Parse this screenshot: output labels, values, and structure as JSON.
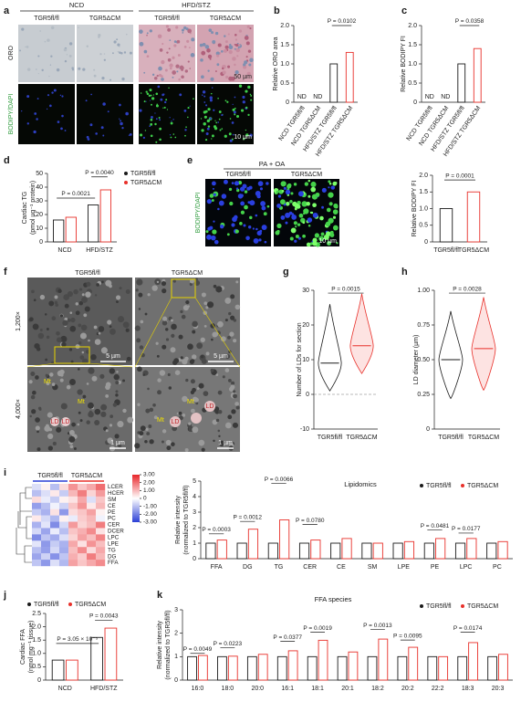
{
  "figure": {
    "panel_labels": [
      "a",
      "b",
      "c",
      "d",
      "e",
      "f",
      "g",
      "h",
      "i",
      "j",
      "k"
    ],
    "panel_a": {
      "groups": [
        "NCD",
        "HFD/STZ"
      ],
      "genotypes": [
        "TGR5fl/fl",
        "TGR5ΔCM",
        "TGR5fl/fl",
        "TGR5ΔCM"
      ],
      "rows": [
        "ORO",
        "BODIPY/DAPI"
      ],
      "scale_bars": [
        "50 µm",
        "10 µm"
      ]
    },
    "panel_e": {
      "treatment": "PA + OA",
      "genotypes": [
        "TGR5fl/fl",
        "TGR5ΔCM"
      ],
      "row": "BODIPY/DAPI",
      "scale_bar": "10 µm"
    },
    "panel_f": {
      "genotypes": [
        "TGR5fl/fl",
        "TGR5ΔCM"
      ],
      "rows": [
        "1,200×",
        "4,000×"
      ],
      "scale_bars": [
        "5 µm",
        "5 µm",
        "1 µm",
        "1 µm"
      ],
      "labels": [
        "Mt",
        "Mt",
        "LD",
        "LD",
        "Mt",
        "LD",
        "Mt",
        "LD"
      ]
    }
  },
  "chart_data": [
    {
      "type": "bar",
      "ylabel": "Relative ORO area",
      "categories": [
        "NCD TGR5fl/fl",
        "NCD TGR5ΔCM",
        "HFD/STZ TGR5fl/fl",
        "HFD/STZ TGR5ΔCM"
      ],
      "values": [
        null,
        null,
        1.0,
        1.3
      ],
      "value_labels": [
        "ND",
        "ND",
        null,
        null
      ],
      "colors": [
        "#1a1a1a",
        "#e8302a",
        "#1a1a1a",
        "#e8302a"
      ],
      "ylim": [
        0,
        2
      ],
      "yticks": [
        0,
        0.5,
        {
          "value": 1,
          "label": "1.0"
        },
        1.5,
        {
          "value": 2,
          "label": "2.0"
        }
      ],
      "annotations": [
        "P = 0.0102"
      ]
    },
    {
      "type": "bar",
      "ylabel": "Relative BODIPY FI",
      "categories": [
        "NCD TGR5fl/fl",
        "NCD TGR5ΔCM",
        "HFD/STZ TGR5fl/fl",
        "HFD/STZ TGR5ΔCM"
      ],
      "values": [
        null,
        null,
        1.0,
        1.4
      ],
      "value_labels": [
        "ND",
        "ND",
        null,
        null
      ],
      "colors": [
        "#1a1a1a",
        "#e8302a",
        "#1a1a1a",
        "#e8302a"
      ],
      "ylim": [
        0,
        2
      ],
      "yticks": [
        0,
        0.5,
        {
          "value": 1,
          "label": "1.0"
        },
        1.5,
        {
          "value": 2,
          "label": "2.0"
        }
      ],
      "annotations": [
        "P = 0.0358"
      ]
    },
    {
      "type": "bar",
      "ylabel": [
        "Cardiac TG",
        "(pmol µg⁻¹ protein)"
      ],
      "categories": [
        "NCD",
        "HFD/STZ"
      ],
      "series": [
        {
          "name": "TGR5fl/fl",
          "color": "#1a1a1a",
          "values": [
            16,
            27
          ]
        },
        {
          "name": "TGR5ΔCM",
          "color": "#e8302a",
          "values": [
            18,
            38
          ]
        }
      ],
      "ylim": [
        0,
        50
      ],
      "yticks": [
        0,
        10,
        20,
        30,
        40,
        50
      ],
      "annotations": [
        "P = 0.0021",
        "P = 0.0040"
      ]
    },
    {
      "type": "bar",
      "ylabel": "Relative BODIPY FI",
      "categories": [
        "TGR5fl/fl",
        "TGR5ΔCM"
      ],
      "values": [
        1.0,
        1.5
      ],
      "colors": [
        "#1a1a1a",
        "#e8302a"
      ],
      "ylim": [
        0,
        2
      ],
      "yticks": [
        0,
        0.5,
        {
          "value": 1,
          "label": "1.0"
        },
        1.5,
        {
          "value": 2,
          "label": "2.0"
        }
      ],
      "annotations": [
        "P = 0.0001"
      ]
    },
    {
      "type": "violin",
      "ylabel": "Number of LDs for section",
      "categories": [
        "TGR5fl/fl",
        "TGR5ΔCM"
      ],
      "values": [
        9,
        14
      ],
      "min": [
        1,
        6
      ],
      "max": [
        26,
        29
      ],
      "colors": [
        "#1a1a1a",
        "#e8302a"
      ],
      "ylim": [
        -10,
        30
      ],
      "yticks": [
        -10,
        0,
        10,
        20,
        30
      ],
      "annotations": [
        "P = 0.0015"
      ]
    },
    {
      "type": "violin",
      "ylabel": "LD diameter (µm)",
      "categories": [
        "TGR5fl/fl",
        "TGR5ΔCM"
      ],
      "values": [
        0.5,
        0.58
      ],
      "min": [
        0.22,
        0.28
      ],
      "max": [
        0.85,
        0.95
      ],
      "colors": [
        "#1a1a1a",
        "#e8302a"
      ],
      "ylim": [
        0,
        1
      ],
      "yticks": [
        0,
        {
          "value": 0.25,
          "label": "0.25"
        },
        {
          "value": 0.5,
          "label": "0.50"
        },
        {
          "value": 0.75,
          "label": "0.75"
        },
        {
          "value": 1,
          "label": "1.00"
        }
      ],
      "annotations": [
        "P = 0.0028"
      ]
    },
    {
      "type": "heatmap",
      "groups": [
        "TGR5fl/fl",
        "TGR5ΔCM"
      ],
      "rows": [
        "LCER",
        "HCER",
        "SM",
        "CE",
        "PE",
        "PC",
        "CER",
        "DCER",
        "LPC",
        "LPE",
        "TG",
        "DG",
        "FFA"
      ],
      "values": [
        [
          -0.5,
          0.2,
          -1,
          0.5,
          1.5,
          0.8,
          1.2,
          2
        ],
        [
          -1,
          -0.5,
          0.3,
          -0.8,
          1,
          1.8,
          0.6,
          1.4
        ],
        [
          0.5,
          -0.3,
          -0.8,
          0.2,
          0.4,
          1.2,
          -0.5,
          0.8
        ],
        [
          -1.5,
          -1,
          -0.2,
          -0.7,
          0.8,
          1.5,
          0.3,
          1
        ],
        [
          -0.8,
          -1.2,
          0.4,
          -1.6,
          0.5,
          0.8,
          1.3,
          0.2
        ],
        [
          0.3,
          -0.6,
          -1.1,
          0.2,
          -0.3,
          0.7,
          1,
          -0.2
        ],
        [
          -1.2,
          -0.4,
          -1.8,
          -0.6,
          1.4,
          0.6,
          0.9,
          1.8
        ],
        [
          -0.6,
          -1.4,
          -0.3,
          -1,
          0.8,
          1.1,
          1.6,
          0.4
        ],
        [
          -1.8,
          -0.9,
          -1.3,
          -0.5,
          0.6,
          1.3,
          0.9,
          1.7
        ],
        [
          -0.4,
          -1.6,
          -0.8,
          -1.2,
          1.2,
          0.4,
          1.5,
          0.9
        ],
        [
          -1,
          -1.5,
          -0.6,
          -1.3,
          0.9,
          1.6,
          0.5,
          1.2
        ],
        [
          -1.4,
          -0.7,
          -1.7,
          -0.9,
          1.1,
          0.7,
          1.8,
          1
        ],
        [
          -0.9,
          -1.6,
          -0.5,
          -1.1,
          1.3,
          0.8,
          1.2,
          1.6
        ]
      ],
      "zlim": [
        -3,
        3
      ],
      "zticks": [
        {
          "value": 3,
          "label": "3.00"
        },
        {
          "value": 2,
          "label": "2.00"
        },
        {
          "value": 1,
          "label": "1.00"
        },
        0,
        {
          "value": -1,
          "label": "-1.00"
        },
        {
          "value": -2,
          "label": "-2.00"
        },
        {
          "value": -3,
          "label": "-3.00"
        }
      ]
    },
    {
      "type": "bar",
      "title": "Lipidomics",
      "ylabel": [
        "Relative intensity",
        "(normalized to TGR5fl/fl)"
      ],
      "categories": [
        "FFA",
        "DG",
        "TG",
        "CER",
        "CE",
        "SM",
        "LPE",
        "PE",
        "LPC",
        "PC"
      ],
      "series": [
        {
          "name": "TGR5fl/fl",
          "color": "#1a1a1a",
          "values": [
            1,
            1,
            1,
            1,
            1,
            1,
            1,
            1,
            1,
            1
          ]
        },
        {
          "name": "TGR5ΔCM",
          "color": "#e8302a",
          "values": [
            1.2,
            1.9,
            2.5,
            1.2,
            1.3,
            1.0,
            1.1,
            1.3,
            1.3,
            1.1
          ]
        }
      ],
      "ylim": [
        0,
        5
      ],
      "yticks": [
        0,
        1,
        2,
        3,
        4,
        5
      ],
      "annotations": [
        "P = 0.0003",
        "P = 0.0012",
        "P = 0.0066",
        "P = 0.0780",
        "P = 0.0481",
        "P = 0.0177"
      ]
    },
    {
      "type": "bar",
      "ylabel": [
        "Cardiac FFA",
        "(nmol mg⁻¹ tissue)"
      ],
      "categories": [
        "NCD",
        "HFD/STZ"
      ],
      "series": [
        {
          "name": "TGR5fl/fl",
          "color": "#1a1a1a",
          "values": [
            0.75,
            1.6
          ]
        },
        {
          "name": "TGR5ΔCM",
          "color": "#e8302a",
          "values": [
            0.75,
            1.95
          ]
        }
      ],
      "ylim": [
        0,
        2.5
      ],
      "yticks": [
        0,
        0.5,
        {
          "value": 1,
          "label": "1.0"
        },
        1.5,
        {
          "value": 2,
          "label": "2.0"
        },
        2.5
      ],
      "annotations": [
        "P = 3.05 × 10⁻⁵",
        "P = 0.0043"
      ]
    },
    {
      "type": "bar",
      "title": "FFA species",
      "ylabel": [
        "Relative intensity",
        "(normalized to TGR5fl/fl)"
      ],
      "categories": [
        "16:0",
        "18:0",
        "20:0",
        "16:1",
        "18:1",
        "20:1",
        "18:2",
        "20:2",
        "22:2",
        "18:3",
        "20:3"
      ],
      "series": [
        {
          "name": "TGR5fl/fl",
          "color": "#1a1a1a",
          "values": [
            1,
            1,
            1,
            1,
            1,
            1,
            1,
            1,
            1,
            1,
            1
          ]
        },
        {
          "name": "TGR5ΔCM",
          "color": "#e8302a",
          "values": [
            1.05,
            1.02,
            1.1,
            1.25,
            1.7,
            1.2,
            1.75,
            1.4,
            1.0,
            1.6,
            1.1
          ]
        }
      ],
      "ylim": [
        0,
        3
      ],
      "yticks": [
        0,
        1,
        2,
        3
      ],
      "annotations": [
        "P = 0.0049",
        "P = 0.0223",
        "P = 0.0377",
        "P = 0.0019",
        "P = 0.0013",
        "P = 0.0095",
        "P = 0.0174"
      ]
    }
  ]
}
